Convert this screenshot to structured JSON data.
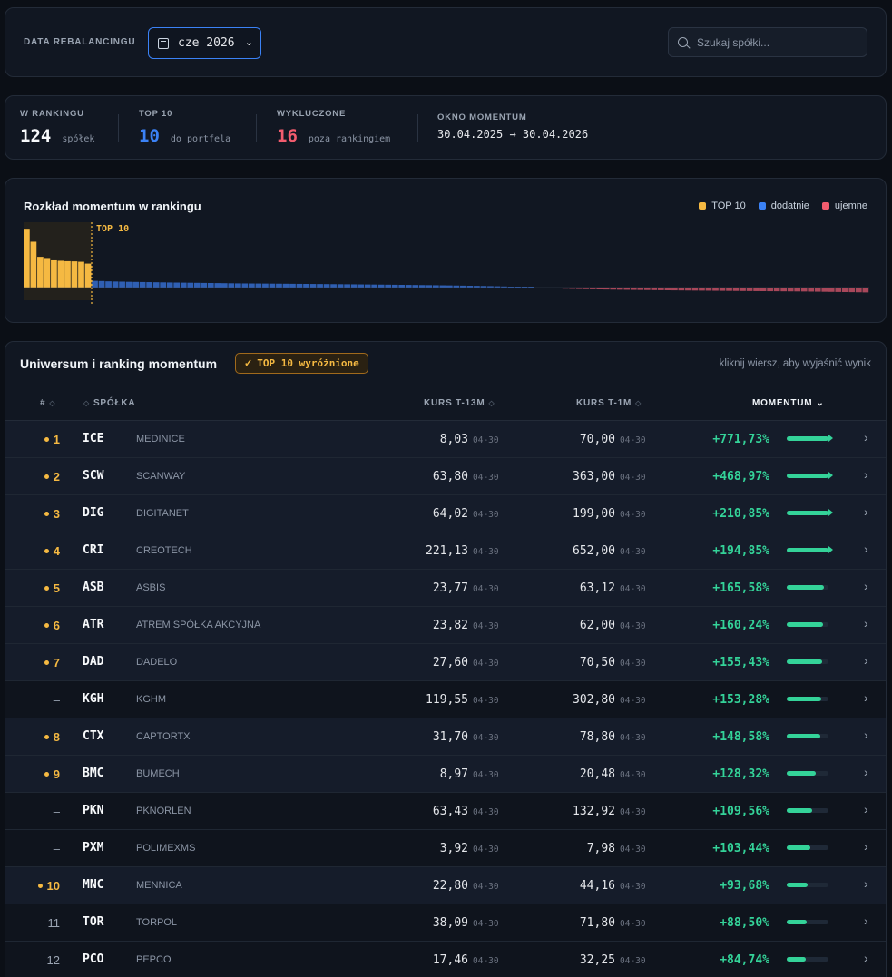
{
  "topbar": {
    "rebalance_label": "DATA REBALANCINGU",
    "date_value": "cze 2026",
    "search_placeholder": "Szukaj spółki..."
  },
  "stats": [
    {
      "label": "W RANKINGU",
      "value": "124",
      "sub": "spółek",
      "color": "#f8fafc"
    },
    {
      "label": "TOP 10",
      "value": "10",
      "sub": "do portfela",
      "color": "#3b82f6"
    },
    {
      "label": "WYKLUCZONE",
      "value": "16",
      "sub": "poza rankingiem",
      "color": "#f25c6e"
    },
    {
      "label": "OKNO MOMENTUM",
      "value": "30.04.2025 → 30.04.2026"
    }
  ],
  "distribution": {
    "title": "Rozkład momentum w rankingu",
    "top_marker_label": "TOP 10",
    "legend": [
      {
        "label": "TOP 10",
        "color": "#f5b942"
      },
      {
        "label": "dodatnie",
        "color": "#3b82f6"
      },
      {
        "label": "ujemne",
        "color": "#f25c6e"
      }
    ]
  },
  "chart_data": {
    "type": "bar",
    "description_count": 124,
    "top_count": 10,
    "values": [
      771.73,
      468.97,
      210.85,
      194.85,
      165.58,
      160.24,
      155.43,
      153.28,
      148.58,
      128.32,
      109.56,
      103.44,
      93.68,
      88.5,
      84.74,
      80,
      77,
      74,
      71,
      68,
      65,
      62,
      60,
      58,
      56,
      54,
      52,
      50,
      48,
      46,
      44,
      42,
      41,
      40,
      39,
      38,
      37,
      36,
      35,
      34,
      33,
      32,
      31,
      30,
      29,
      28,
      27,
      26,
      25,
      24,
      23,
      22,
      21,
      20,
      19,
      18,
      17,
      16,
      15,
      14,
      13,
      12,
      11,
      10,
      9,
      8,
      7,
      6,
      5,
      4,
      3,
      2,
      1.5,
      1,
      0.5,
      -0.5,
      -1,
      -1.5,
      -2,
      -3,
      -4,
      -5,
      -6,
      -7,
      -8,
      -9,
      -10,
      -11,
      -12,
      -13,
      -14,
      -15,
      -16,
      -17,
      -18,
      -19,
      -20,
      -21,
      -22,
      -23,
      -24,
      -25,
      -26,
      -27,
      -28,
      -29,
      -30,
      -31,
      -32,
      -33,
      -34,
      -35,
      -36,
      -37,
      -38,
      -40,
      -42,
      -44,
      -46,
      -48,
      -50,
      -52,
      -55,
      -58
    ]
  },
  "ranking": {
    "title": "Uniwersum i ranking momentum",
    "badge": "TOP 10 wyróżnione",
    "hint": "kliknij wiersz, aby wyjaśnić wynik",
    "headers": {
      "rank": "#",
      "company": "SPÓŁKA",
      "k13": "KURS T-13M",
      "k1": "KURS T-1M",
      "momentum": "MOMENTUM"
    },
    "rows": [
      {
        "rank": "1",
        "top": true,
        "ticker": "ICE",
        "name": "MEDINICE",
        "k13": "8,03",
        "d13": "04-30",
        "k1": "70,00",
        "d1": "04-30",
        "mom": "+771,73%",
        "fill": 1.0,
        "capped": true
      },
      {
        "rank": "2",
        "top": true,
        "ticker": "SCW",
        "name": "SCANWAY",
        "k13": "63,80",
        "d13": "04-30",
        "k1": "363,00",
        "d1": "04-30",
        "mom": "+468,97%",
        "fill": 1.0,
        "capped": true
      },
      {
        "rank": "3",
        "top": true,
        "ticker": "DIG",
        "name": "DIGITANET",
        "k13": "64,02",
        "d13": "04-30",
        "k1": "199,00",
        "d1": "04-30",
        "mom": "+210,85%",
        "fill": 1.0,
        "capped": true
      },
      {
        "rank": "4",
        "top": true,
        "ticker": "CRI",
        "name": "CREOTECH",
        "k13": "221,13",
        "d13": "04-30",
        "k1": "652,00",
        "d1": "04-30",
        "mom": "+194,85%",
        "fill": 1.0,
        "capped": true
      },
      {
        "rank": "5",
        "top": true,
        "ticker": "ASB",
        "name": "ASBIS",
        "k13": "23,77",
        "d13": "04-30",
        "k1": "63,12",
        "d1": "04-30",
        "mom": "+165,58%",
        "fill": 0.9,
        "capped": false
      },
      {
        "rank": "6",
        "top": true,
        "ticker": "ATR",
        "name": "ATREM SPÓŁKA AKCYJNA",
        "k13": "23,82",
        "d13": "04-30",
        "k1": "62,00",
        "d1": "04-30",
        "mom": "+160,24%",
        "fill": 0.87,
        "capped": false
      },
      {
        "rank": "7",
        "top": true,
        "ticker": "DAD",
        "name": "DADELO",
        "k13": "27,60",
        "d13": "04-30",
        "k1": "70,50",
        "d1": "04-30",
        "mom": "+155,43%",
        "fill": 0.85,
        "capped": false
      },
      {
        "rank": "–",
        "top": false,
        "ticker": "KGH",
        "name": "KGHM",
        "k13": "119,55",
        "d13": "04-30",
        "k1": "302,80",
        "d1": "04-30",
        "mom": "+153,28%",
        "fill": 0.83,
        "capped": false
      },
      {
        "rank": "8",
        "top": true,
        "ticker": "CTX",
        "name": "CAPTORTX",
        "k13": "31,70",
        "d13": "04-30",
        "k1": "78,80",
        "d1": "04-30",
        "mom": "+148,58%",
        "fill": 0.81,
        "capped": false
      },
      {
        "rank": "9",
        "top": true,
        "ticker": "BMC",
        "name": "BUMECH",
        "k13": "8,97",
        "d13": "04-30",
        "k1": "20,48",
        "d1": "04-30",
        "mom": "+128,32%",
        "fill": 0.7,
        "capped": false
      },
      {
        "rank": "–",
        "top": false,
        "ticker": "PKN",
        "name": "PKNORLEN",
        "k13": "63,43",
        "d13": "04-30",
        "k1": "132,92",
        "d1": "04-30",
        "mom": "+109,56%",
        "fill": 0.6,
        "capped": false
      },
      {
        "rank": "–",
        "top": false,
        "ticker": "PXM",
        "name": "POLIMEXMS",
        "k13": "3,92",
        "d13": "04-30",
        "k1": "7,98",
        "d1": "04-30",
        "mom": "+103,44%",
        "fill": 0.56,
        "capped": false
      },
      {
        "rank": "10",
        "top": true,
        "ticker": "MNC",
        "name": "MENNICA",
        "k13": "22,80",
        "d13": "04-30",
        "k1": "44,16",
        "d1": "04-30",
        "mom": "+93,68%",
        "fill": 0.51,
        "capped": false
      },
      {
        "rank": "11",
        "top": false,
        "ticker": "TOR",
        "name": "TORPOL",
        "k13": "38,09",
        "d13": "04-30",
        "k1": "71,80",
        "d1": "04-30",
        "mom": "+88,50%",
        "fill": 0.48,
        "capped": false
      },
      {
        "rank": "12",
        "top": false,
        "ticker": "PCO",
        "name": "PEPCO",
        "k13": "17,46",
        "d13": "04-30",
        "k1": "32,25",
        "d1": "04-30",
        "mom": "+84,74%",
        "fill": 0.46,
        "capped": false
      }
    ]
  }
}
